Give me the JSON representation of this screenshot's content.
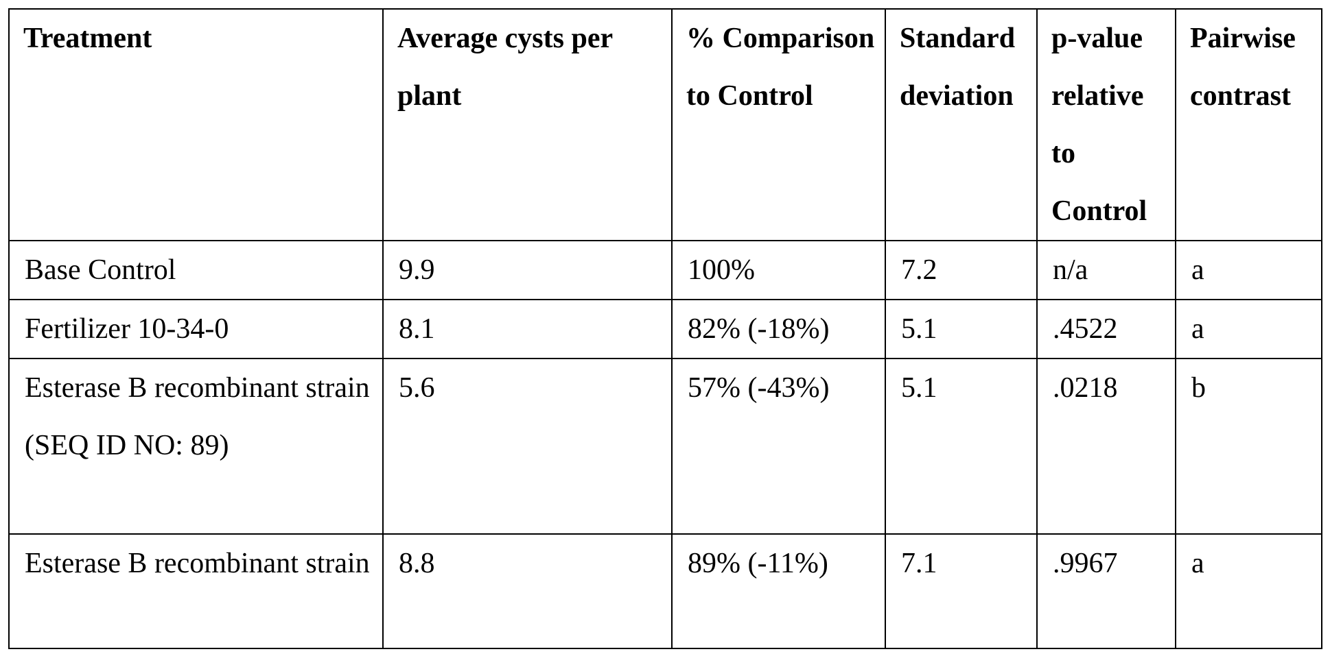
{
  "table": {
    "header": [
      "Treatment",
      "Average cysts per plant",
      "% Comparison to Control",
      "Standard deviation",
      "p-value relative to Control",
      "Pairwise contrast"
    ],
    "rows": [
      [
        "Base Control",
        "9.9",
        "100%",
        "7.2",
        "n/a",
        "a"
      ],
      [
        "Fertilizer 10-34-0",
        "8.1",
        "82% (-18%)",
        "5.1",
        ".4522",
        "a"
      ],
      [
        "Esterase B recombinant strain\n(SEQ ID NO: 89)",
        "5.6",
        "57% (-43%)",
        "5.1",
        ".0218",
        "b"
      ],
      [
        "Esterase B recombinant strain",
        "8.8",
        "89% (-11%)",
        "7.1",
        ".9967",
        "a"
      ]
    ]
  }
}
